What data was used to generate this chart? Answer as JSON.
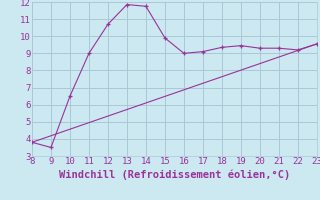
{
  "xlabel": "Windchill (Refroidissement éolien,°C)",
  "line1_x": [
    8,
    9,
    10,
    11,
    12,
    13,
    14,
    15,
    16,
    17,
    18,
    19,
    20,
    21,
    22,
    23
  ],
  "line1_y": [
    3.8,
    3.5,
    6.5,
    9.0,
    10.7,
    11.85,
    11.75,
    9.9,
    9.0,
    9.1,
    9.35,
    9.45,
    9.3,
    9.3,
    9.2,
    9.55
  ],
  "line2_x": [
    8,
    23
  ],
  "line2_y": [
    3.8,
    9.55
  ],
  "color": "#993399",
  "bg_color": "#cce8f0",
  "grid_color": "#aac8d8",
  "xlim": [
    8,
    23
  ],
  "ylim": [
    3,
    12
  ],
  "xticks": [
    8,
    9,
    10,
    11,
    12,
    13,
    14,
    15,
    16,
    17,
    18,
    19,
    20,
    21,
    22,
    23
  ],
  "yticks": [
    3,
    4,
    5,
    6,
    7,
    8,
    9,
    10,
    11,
    12
  ],
  "tick_fontsize": 6.5,
  "xlabel_fontsize": 7.5
}
